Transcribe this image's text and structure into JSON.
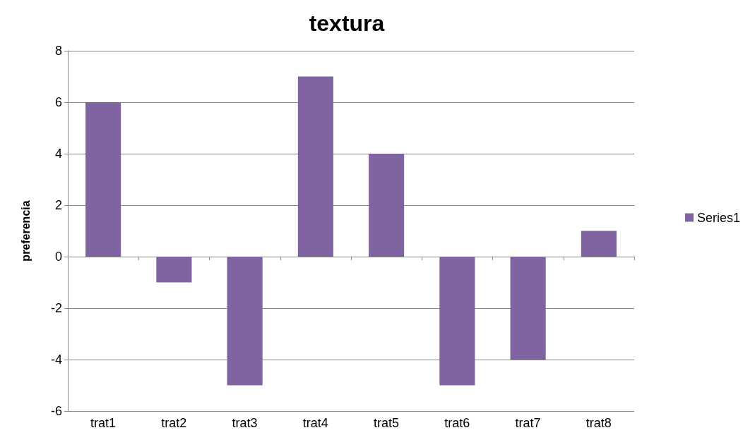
{
  "chart_data": {
    "type": "bar",
    "title": "textura",
    "ylabel": "preferencia",
    "categories": [
      "trat1",
      "trat2",
      "trat3",
      "trat4",
      "trat5",
      "trat6",
      "trat7",
      "trat8"
    ],
    "series": [
      {
        "name": "Series1",
        "color": "#8064a2",
        "values": [
          6,
          -1,
          -5,
          7,
          4,
          -5,
          -4,
          1
        ]
      }
    ],
    "ylim": [
      -6,
      8
    ],
    "yticks": [
      -6,
      -4,
      -2,
      0,
      2,
      4,
      6,
      8
    ],
    "grid": "y",
    "legend": "right"
  }
}
